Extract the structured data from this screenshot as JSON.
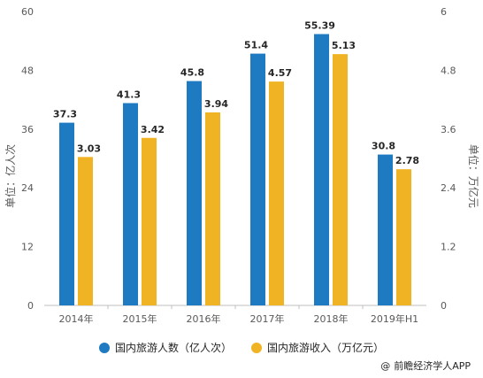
{
  "chart_data": {
    "type": "bar",
    "categories": [
      "2014年",
      "2015年",
      "2016年",
      "2017年",
      "2018年",
      "2019年H1"
    ],
    "series": [
      {
        "name": "国内旅游人数（亿人次）",
        "values": [
          37.3,
          41.3,
          45.8,
          51.4,
          55.39,
          30.8
        ],
        "labels": [
          "37.3",
          "41.3",
          "45.8",
          "51.4",
          "55.39",
          "30.8"
        ],
        "axis": "left",
        "color": "#1f7bc1"
      },
      {
        "name": "国内旅游收入（万亿元）",
        "values": [
          3.03,
          3.42,
          3.94,
          4.57,
          5.13,
          2.78
        ],
        "labels": [
          "3.03",
          "3.42",
          "3.94",
          "4.57",
          "5.13",
          "2.78"
        ],
        "axis": "right",
        "color": "#f0b323"
      }
    ],
    "ylabel": "单位：亿人次",
    "ylabel_right": "单位：万亿元",
    "ylim": [
      0,
      60
    ],
    "ylim_right": [
      0,
      6
    ],
    "yticks": [
      "0",
      "12",
      "24",
      "36",
      "48",
      "60"
    ],
    "yticks_right": [
      "0",
      "1.2",
      "2.4",
      "3.6",
      "4.8",
      "6"
    ],
    "legend_position": "bottom",
    "grid": false
  },
  "source": "前瞻经济学人APP",
  "source_prefix": "@"
}
